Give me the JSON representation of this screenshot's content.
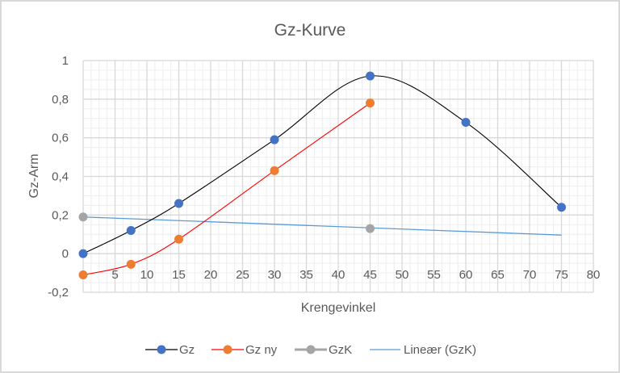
{
  "chart_data": {
    "type": "line",
    "title": "Gz-Kurve",
    "xlabel": "Krengevinkel",
    "ylabel": "Gz-Arm",
    "xlim": [
      0,
      80
    ],
    "ylim": [
      -0.2,
      1
    ],
    "x_ticks": [
      0,
      5,
      10,
      15,
      20,
      25,
      30,
      35,
      40,
      45,
      50,
      55,
      60,
      65,
      70,
      75,
      80
    ],
    "x_tick_labels": [
      "0",
      "5",
      "10",
      "15",
      "20",
      "25",
      "30",
      "35",
      "40",
      "45",
      "50",
      "55",
      "60",
      "65",
      "70",
      "75",
      "80"
    ],
    "y_ticks": [
      -0.2,
      0,
      0.2,
      0.4,
      0.6,
      0.8,
      1
    ],
    "y_tick_labels": [
      "-0,2",
      "0",
      "0,2",
      "0,4",
      "0,6",
      "0,8",
      "1"
    ],
    "grid": {
      "major": true,
      "minor": true,
      "minor_divisions": 4
    },
    "legend_position": "bottom",
    "series": [
      {
        "name": "Gz",
        "line_color": "#000000",
        "marker_color": "#4472C4",
        "smooth": true,
        "markers": true,
        "x": [
          0,
          7.5,
          15,
          30,
          45,
          60,
          75
        ],
        "values": [
          0,
          0.12,
          0.26,
          0.59,
          0.92,
          0.68,
          0.24
        ]
      },
      {
        "name": "Gz ny",
        "line_color": "#FF0000",
        "marker_color": "#ED7D31",
        "smooth": true,
        "markers": true,
        "x": [
          0,
          7.5,
          15,
          30,
          45
        ],
        "values": [
          -0.11,
          -0.055,
          0.075,
          0.43,
          0.78
        ]
      },
      {
        "name": "GzK",
        "line_color": "#A5A5A5",
        "marker_color": "#A5A5A5",
        "smooth": false,
        "markers": true,
        "line_visible": false,
        "x": [
          0,
          45
        ],
        "values": [
          0.19,
          0.13
        ]
      },
      {
        "name": "Lineær (GzK)",
        "line_color": "#5B9BD5",
        "trendline": true,
        "markers": false,
        "x": [
          0,
          75
        ],
        "values": [
          0.19,
          0.096
        ]
      }
    ]
  },
  "legend": [
    {
      "label": "Gz"
    },
    {
      "label": "Gz ny"
    },
    {
      "label": "GzK"
    },
    {
      "label": "Lineær (GzK)"
    }
  ]
}
